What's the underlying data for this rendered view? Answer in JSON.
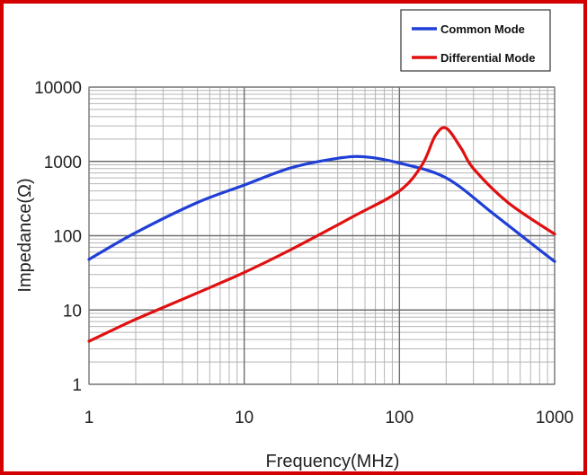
{
  "chart_data": {
    "type": "line",
    "xlabel": "Frequency(MHz)",
    "ylabel": "Impedance(Ω)",
    "x_scale": "log",
    "y_scale": "log",
    "xlim": [
      1,
      1000
    ],
    "ylim": [
      1,
      10000
    ],
    "grid": true,
    "legend_position": "top-right",
    "x_ticks": [
      "1",
      "10",
      "100",
      "1000"
    ],
    "y_ticks": [
      "1",
      "10",
      "100",
      "1000",
      "10000"
    ],
    "series": [
      {
        "name": "Common Mode",
        "color": "#1f3fd6",
        "x": [
          1,
          2,
          5,
          10,
          20,
          40,
          60,
          100,
          200,
          400,
          700,
          1000
        ],
        "y": [
          48,
          110,
          280,
          480,
          820,
          1100,
          1150,
          950,
          600,
          200,
          80,
          45
        ]
      },
      {
        "name": "Differential Mode",
        "color": "#e01010",
        "x": [
          1,
          2,
          5,
          10,
          20,
          50,
          100,
          140,
          170,
          200,
          250,
          300,
          500,
          1000
        ],
        "y": [
          3.8,
          7.5,
          17,
          32,
          65,
          180,
          400,
          900,
          2200,
          2800,
          1500,
          800,
          280,
          105
        ]
      }
    ]
  }
}
